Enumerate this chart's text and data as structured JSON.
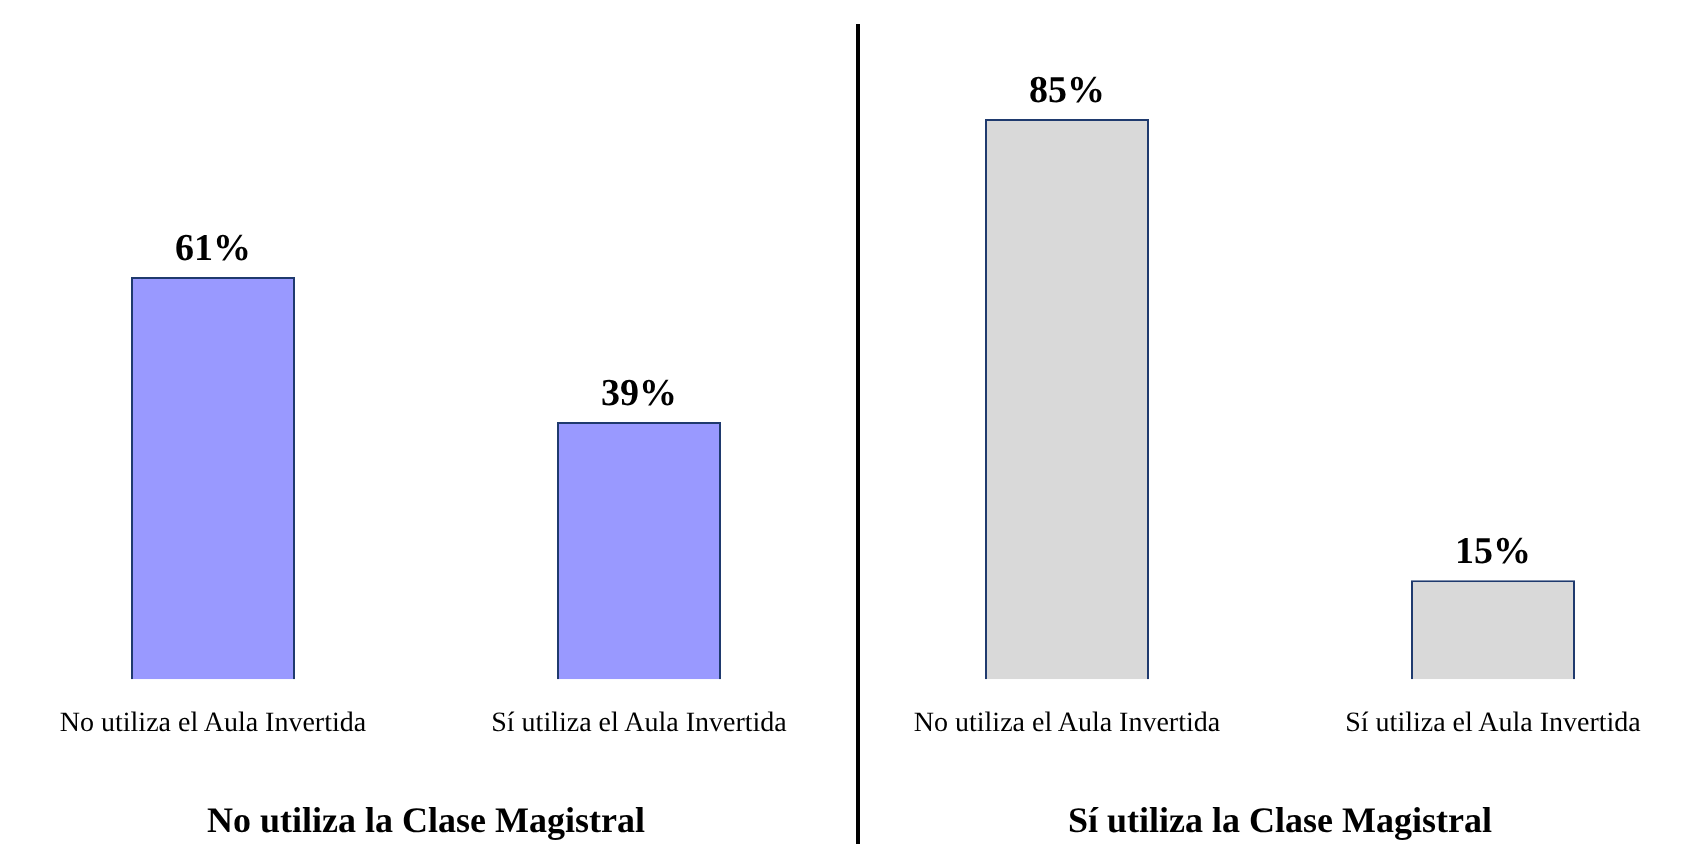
{
  "chart_data": [
    {
      "type": "bar",
      "xlabel": "No utiliza la Clase Magistral",
      "categories": [
        "No utiliza el Aula Invertida",
        "Sí utiliza el Aula Invertida"
      ],
      "values": [
        61,
        39
      ],
      "value_labels": [
        "61%",
        "39%"
      ],
      "color": "#9999ff",
      "ylim": [
        0,
        100
      ]
    },
    {
      "type": "bar",
      "xlabel": "Sí utiliza la Clase Magistral",
      "categories": [
        "No utiliza el Aula Invertida",
        "Sí utiliza el Aula Invertida"
      ],
      "values": [
        85,
        15
      ],
      "value_labels": [
        "85%",
        "15%"
      ],
      "color": "#d9d9d9",
      "ylim": [
        0,
        100
      ]
    }
  ]
}
